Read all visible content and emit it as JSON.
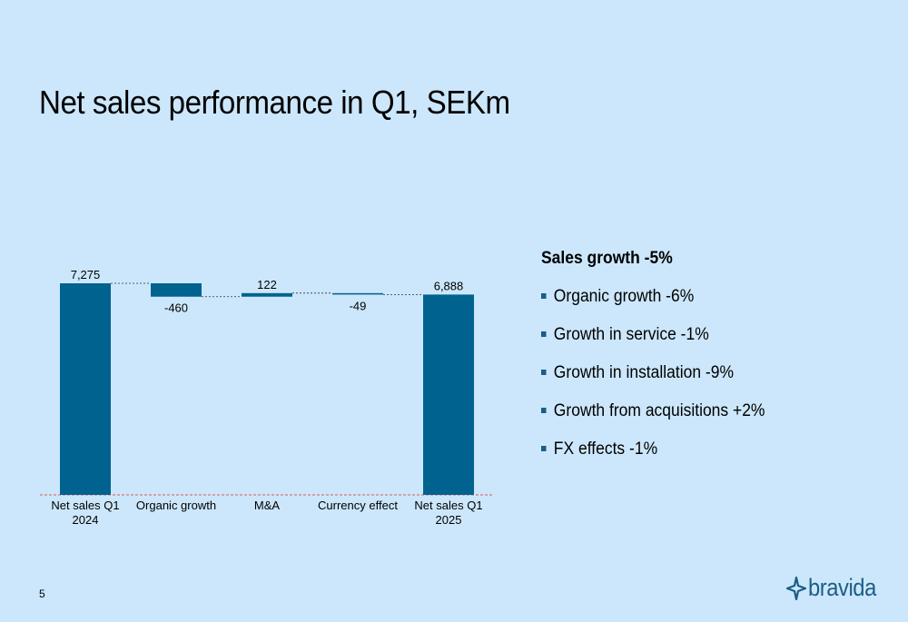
{
  "title": "Net sales performance in Q1, SEKm",
  "page_number": "5",
  "logo": {
    "text": "bravida",
    "icon": "bravida-star-icon",
    "color": "#1b5d86"
  },
  "side_panel": {
    "heading": "Sales growth -5%",
    "bullets": [
      "Organic growth -6%",
      "Growth in service -1%",
      "Growth in installation -9%",
      "Growth from acquisitions +2%",
      "FX effects -1%"
    ]
  },
  "colors": {
    "bar": "#00628f",
    "background": "#cce7fb",
    "baseline": "#e05a5a"
  },
  "chart_data": {
    "type": "bar",
    "subtype": "waterfall",
    "categories": [
      [
        "Net sales Q1",
        "2024"
      ],
      [
        "Organic growth"
      ],
      [
        "M&A"
      ],
      [
        "Currency effect"
      ],
      [
        "Net sales Q1",
        "2025"
      ]
    ],
    "values": [
      7275,
      -460,
      122,
      -49,
      6888
    ],
    "value_labels": [
      "7,275",
      "-460",
      "122",
      "-49",
      "6,888"
    ],
    "bar_kinds": [
      "total",
      "delta",
      "delta",
      "delta",
      "total"
    ],
    "ylim": [
      0,
      7275
    ],
    "grid": false,
    "legend": "none",
    "xlabel": "",
    "ylabel": ""
  }
}
